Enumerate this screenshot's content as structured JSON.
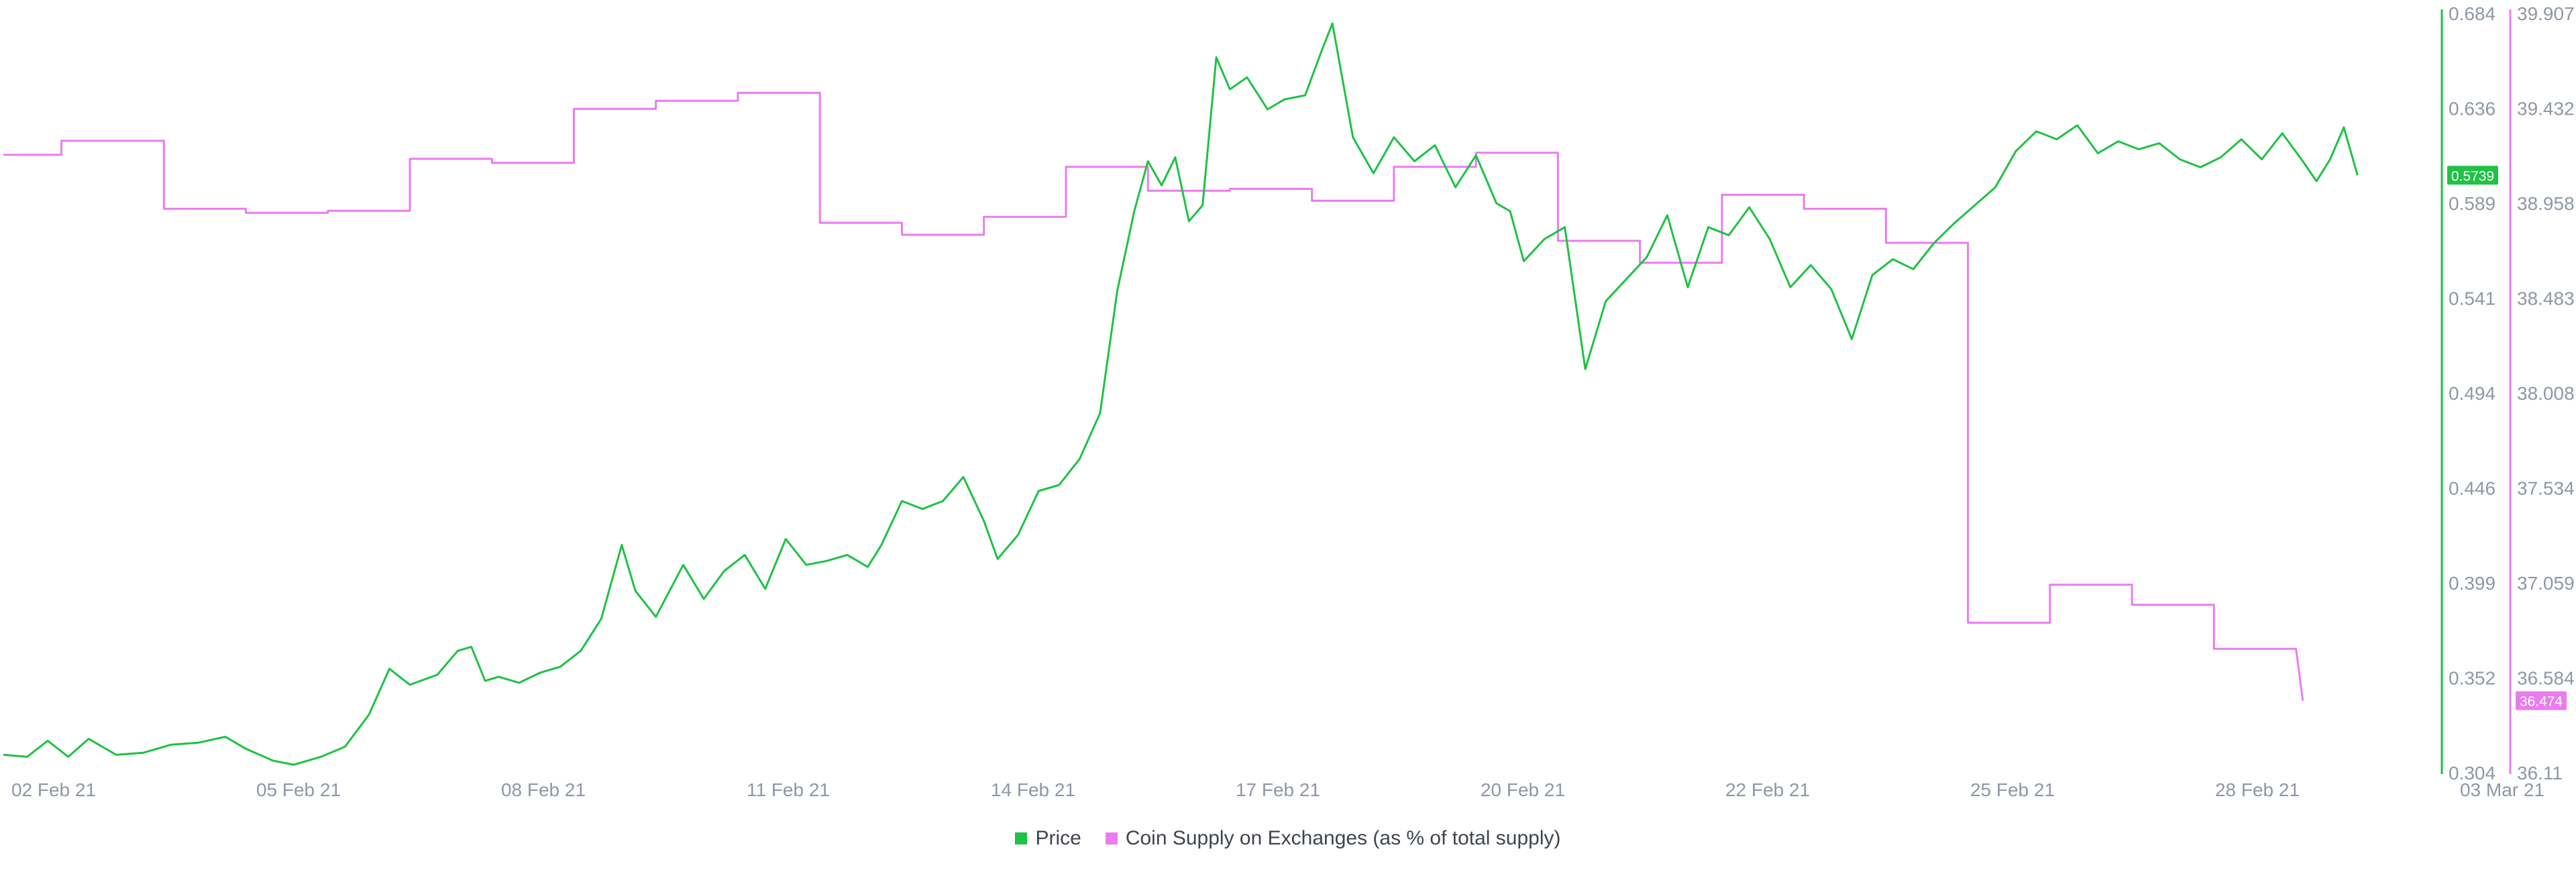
{
  "chart_data": {
    "type": "line",
    "x_ticks": [
      "02 Feb 21",
      "05 Feb 21",
      "08 Feb 21",
      "11 Feb 21",
      "14 Feb 21",
      "17 Feb 21",
      "20 Feb 21",
      "22 Feb 21",
      "25 Feb 21",
      "28 Feb 21",
      "03 Mar 21"
    ],
    "xlim": [
      "2021-02-02T00:00",
      "2021-03-03T00:00"
    ],
    "price_axis": {
      "ticks": [
        "0.684",
        "0.636",
        "0.589",
        "0.541",
        "0.494",
        "0.446",
        "0.399",
        "0.352",
        "0.304"
      ],
      "ylim": [
        0.304,
        0.684
      ],
      "color": "#1ec244"
    },
    "supply_axis": {
      "ticks": [
        "39.907",
        "39.432",
        "38.958",
        "38.483",
        "38.008",
        "37.534",
        "37.059",
        "36.584",
        "36.11"
      ],
      "ylim": [
        36.11,
        39.907
      ],
      "color": "#ea7cf0"
    },
    "series": [
      {
        "name": "Price",
        "color": "#1ec244",
        "current_label": "0.5739",
        "points": [
          [
            "2021-02-01T23:00",
            0.313
          ],
          [
            "2021-02-02T06:00",
            0.312
          ],
          [
            "2021-02-02T12:00",
            0.32
          ],
          [
            "2021-02-02T18:00",
            0.312
          ],
          [
            "2021-02-03T00:00",
            0.321
          ],
          [
            "2021-02-03T08:00",
            0.313
          ],
          [
            "2021-02-03T16:00",
            0.314
          ],
          [
            "2021-02-04T00:00",
            0.318
          ],
          [
            "2021-02-04T08:00",
            0.319
          ],
          [
            "2021-02-04T16:00",
            0.322
          ],
          [
            "2021-02-04T22:00",
            0.316
          ],
          [
            "2021-02-05T06:00",
            0.31
          ],
          [
            "2021-02-05T12:00",
            0.308
          ],
          [
            "2021-02-05T20:00",
            0.312
          ],
          [
            "2021-02-06T03:00",
            0.317
          ],
          [
            "2021-02-06T10:00",
            0.333
          ],
          [
            "2021-02-06T16:00",
            0.356
          ],
          [
            "2021-02-06T22:00",
            0.348
          ],
          [
            "2021-02-07T06:00",
            0.353
          ],
          [
            "2021-02-07T12:00",
            0.365
          ],
          [
            "2021-02-07T16:00",
            0.367
          ],
          [
            "2021-02-07T20:00",
            0.35
          ],
          [
            "2021-02-08T00:00",
            0.352
          ],
          [
            "2021-02-08T06:00",
            0.349
          ],
          [
            "2021-02-08T12:00",
            0.354
          ],
          [
            "2021-02-08T18:00",
            0.357
          ],
          [
            "2021-02-09T00:00",
            0.365
          ],
          [
            "2021-02-09T06:00",
            0.381
          ],
          [
            "2021-02-09T12:00",
            0.418
          ],
          [
            "2021-02-09T16:00",
            0.395
          ],
          [
            "2021-02-09T22:00",
            0.382
          ],
          [
            "2021-02-10T06:00",
            0.408
          ],
          [
            "2021-02-10T12:00",
            0.391
          ],
          [
            "2021-02-10T18:00",
            0.405
          ],
          [
            "2021-02-11T00:00",
            0.413
          ],
          [
            "2021-02-11T06:00",
            0.396
          ],
          [
            "2021-02-11T12:00",
            0.421
          ],
          [
            "2021-02-11T18:00",
            0.408
          ],
          [
            "2021-02-12T00:00",
            0.41
          ],
          [
            "2021-02-12T06:00",
            0.413
          ],
          [
            "2021-02-12T12:00",
            0.407
          ],
          [
            "2021-02-12T16:00",
            0.418
          ],
          [
            "2021-02-12T22:00",
            0.44
          ],
          [
            "2021-02-13T04:00",
            0.436
          ],
          [
            "2021-02-13T10:00",
            0.44
          ],
          [
            "2021-02-13T16:00",
            0.452
          ],
          [
            "2021-02-13T22:00",
            0.43
          ],
          [
            "2021-02-14T02:00",
            0.411
          ],
          [
            "2021-02-14T08:00",
            0.423
          ],
          [
            "2021-02-14T14:00",
            0.445
          ],
          [
            "2021-02-14T20:00",
            0.448
          ],
          [
            "2021-02-15T02:00",
            0.461
          ],
          [
            "2021-02-15T08:00",
            0.484
          ],
          [
            "2021-02-15T13:00",
            0.545
          ],
          [
            "2021-02-15T18:00",
            0.585
          ],
          [
            "2021-02-15T22:00",
            0.61
          ],
          [
            "2021-02-16T02:00",
            0.598
          ],
          [
            "2021-02-16T06:00",
            0.612
          ],
          [
            "2021-02-16T10:00",
            0.58
          ],
          [
            "2021-02-16T14:00",
            0.588
          ],
          [
            "2021-02-16T18:00",
            0.662
          ],
          [
            "2021-02-16T22:00",
            0.646
          ],
          [
            "2021-02-17T03:00",
            0.652
          ],
          [
            "2021-02-17T09:00",
            0.636
          ],
          [
            "2021-02-17T14:00",
            0.641
          ],
          [
            "2021-02-17T20:00",
            0.643
          ],
          [
            "2021-02-18T01:00",
            0.666
          ],
          [
            "2021-02-18T04:00",
            0.679
          ],
          [
            "2021-02-18T10:00",
            0.622
          ],
          [
            "2021-02-18T16:00",
            0.604
          ],
          [
            "2021-02-18T22:00",
            0.622
          ],
          [
            "2021-02-19T04:00",
            0.61
          ],
          [
            "2021-02-19T10:00",
            0.618
          ],
          [
            "2021-02-19T16:00",
            0.597
          ],
          [
            "2021-02-19T22:00",
            0.613
          ],
          [
            "2021-02-20T04:00",
            0.589
          ],
          [
            "2021-02-20T08:00",
            0.585
          ],
          [
            "2021-02-20T12:00",
            0.56
          ],
          [
            "2021-02-20T18:00",
            0.571
          ],
          [
            "2021-02-21T00:00",
            0.577
          ],
          [
            "2021-02-21T06:00",
            0.506
          ],
          [
            "2021-02-21T12:00",
            0.54
          ],
          [
            "2021-02-21T18:00",
            0.551
          ],
          [
            "2021-02-22T00:00",
            0.562
          ],
          [
            "2021-02-22T06:00",
            0.583
          ],
          [
            "2021-02-22T12:00",
            0.547
          ],
          [
            "2021-02-22T18:00",
            0.577
          ],
          [
            "2021-02-23T00:00",
            0.573
          ],
          [
            "2021-02-23T06:00",
            0.587
          ],
          [
            "2021-02-23T12:00",
            0.571
          ],
          [
            "2021-02-23T18:00",
            0.547
          ],
          [
            "2021-02-24T00:00",
            0.558
          ],
          [
            "2021-02-24T06:00",
            0.546
          ],
          [
            "2021-02-24T12:00",
            0.521
          ],
          [
            "2021-02-24T18:00",
            0.553
          ],
          [
            "2021-02-25T00:00",
            0.561
          ],
          [
            "2021-02-25T06:00",
            0.556
          ],
          [
            "2021-02-25T12:00",
            0.569
          ],
          [
            "2021-02-25T18:00",
            0.579
          ],
          [
            "2021-02-26T00:00",
            0.588
          ],
          [
            "2021-02-26T06:00",
            0.597
          ],
          [
            "2021-02-26T12:00",
            0.615
          ],
          [
            "2021-02-26T18:00",
            0.625
          ],
          [
            "2021-02-27T00:00",
            0.621
          ],
          [
            "2021-02-27T06:00",
            0.628
          ],
          [
            "2021-02-27T12:00",
            0.614
          ],
          [
            "2021-02-27T18:00",
            0.62
          ],
          [
            "2021-02-28T00:00",
            0.616
          ],
          [
            "2021-02-28T06:00",
            0.619
          ],
          [
            "2021-02-28T12:00",
            0.611
          ],
          [
            "2021-02-28T18:00",
            0.607
          ],
          [
            "2021-03-01T00:00",
            0.612
          ],
          [
            "2021-03-01T06:00",
            0.621
          ],
          [
            "2021-03-01T12:00",
            0.611
          ],
          [
            "2021-03-01T18:00",
            0.624
          ],
          [
            "2021-03-02T00:00",
            0.61
          ],
          [
            "2021-03-02T04:00",
            0.6
          ],
          [
            "2021-03-02T08:00",
            0.611
          ],
          [
            "2021-03-02T12:00",
            0.627
          ],
          [
            "2021-03-02T16:00",
            0.603
          ]
        ]
      },
      {
        "name": "Coin Supply on Exchanges (as % of total supply)",
        "color": "#ea7cf0",
        "current_label": "36.474",
        "points": [
          [
            "2021-02-01T23:00",
            39.2
          ],
          [
            "2021-02-02T16:00",
            39.2
          ],
          [
            "2021-02-02T16:00",
            39.27
          ],
          [
            "2021-02-03T22:00",
            39.27
          ],
          [
            "2021-02-03T22:00",
            38.93
          ],
          [
            "2021-02-04T22:00",
            38.93
          ],
          [
            "2021-02-04T22:00",
            38.91
          ],
          [
            "2021-02-05T22:00",
            38.91
          ],
          [
            "2021-02-05T22:00",
            38.92
          ],
          [
            "2021-02-06T22:00",
            38.92
          ],
          [
            "2021-02-06T22:00",
            39.18
          ],
          [
            "2021-02-07T22:00",
            39.18
          ],
          [
            "2021-02-07T22:00",
            39.16
          ],
          [
            "2021-02-08T22:00",
            39.16
          ],
          [
            "2021-02-08T22:00",
            39.43
          ],
          [
            "2021-02-09T22:00",
            39.43
          ],
          [
            "2021-02-09T22:00",
            39.47
          ],
          [
            "2021-02-10T22:00",
            39.47
          ],
          [
            "2021-02-10T22:00",
            39.51
          ],
          [
            "2021-02-11T22:00",
            39.51
          ],
          [
            "2021-02-11T22:00",
            38.86
          ],
          [
            "2021-02-12T22:00",
            38.86
          ],
          [
            "2021-02-12T22:00",
            38.8
          ],
          [
            "2021-02-13T22:00",
            38.8
          ],
          [
            "2021-02-13T22:00",
            38.89
          ],
          [
            "2021-02-14T22:00",
            38.89
          ],
          [
            "2021-02-14T22:00",
            39.14
          ],
          [
            "2021-02-15T22:00",
            39.14
          ],
          [
            "2021-02-15T22:00",
            39.02
          ],
          [
            "2021-02-16T22:00",
            39.02
          ],
          [
            "2021-02-16T22:00",
            39.03
          ],
          [
            "2021-02-17T22:00",
            39.03
          ],
          [
            "2021-02-17T22:00",
            38.97
          ],
          [
            "2021-02-18T22:00",
            38.97
          ],
          [
            "2021-02-18T22:00",
            39.14
          ],
          [
            "2021-02-19T22:00",
            39.14
          ],
          [
            "2021-02-19T22:00",
            39.21
          ],
          [
            "2021-02-20T22:00",
            39.21
          ],
          [
            "2021-02-20T22:00",
            38.77
          ],
          [
            "2021-02-21T22:00",
            38.77
          ],
          [
            "2021-02-21T22:00",
            38.66
          ],
          [
            "2021-02-22T22:00",
            38.66
          ],
          [
            "2021-02-22T22:00",
            39.0
          ],
          [
            "2021-02-23T22:00",
            39.0
          ],
          [
            "2021-02-23T22:00",
            38.93
          ],
          [
            "2021-02-24T22:00",
            38.93
          ],
          [
            "2021-02-24T22:00",
            38.76
          ],
          [
            "2021-02-25T22:00",
            38.76
          ],
          [
            "2021-02-25T22:00",
            36.86
          ],
          [
            "2021-02-26T22:00",
            36.86
          ],
          [
            "2021-02-26T22:00",
            37.05
          ],
          [
            "2021-02-27T22:00",
            37.05
          ],
          [
            "2021-02-27T22:00",
            36.95
          ],
          [
            "2021-02-28T22:00",
            36.95
          ],
          [
            "2021-02-28T22:00",
            36.73
          ],
          [
            "2021-03-01T22:00",
            36.73
          ],
          [
            "2021-03-02T00:00",
            36.47
          ]
        ]
      }
    ]
  }
}
